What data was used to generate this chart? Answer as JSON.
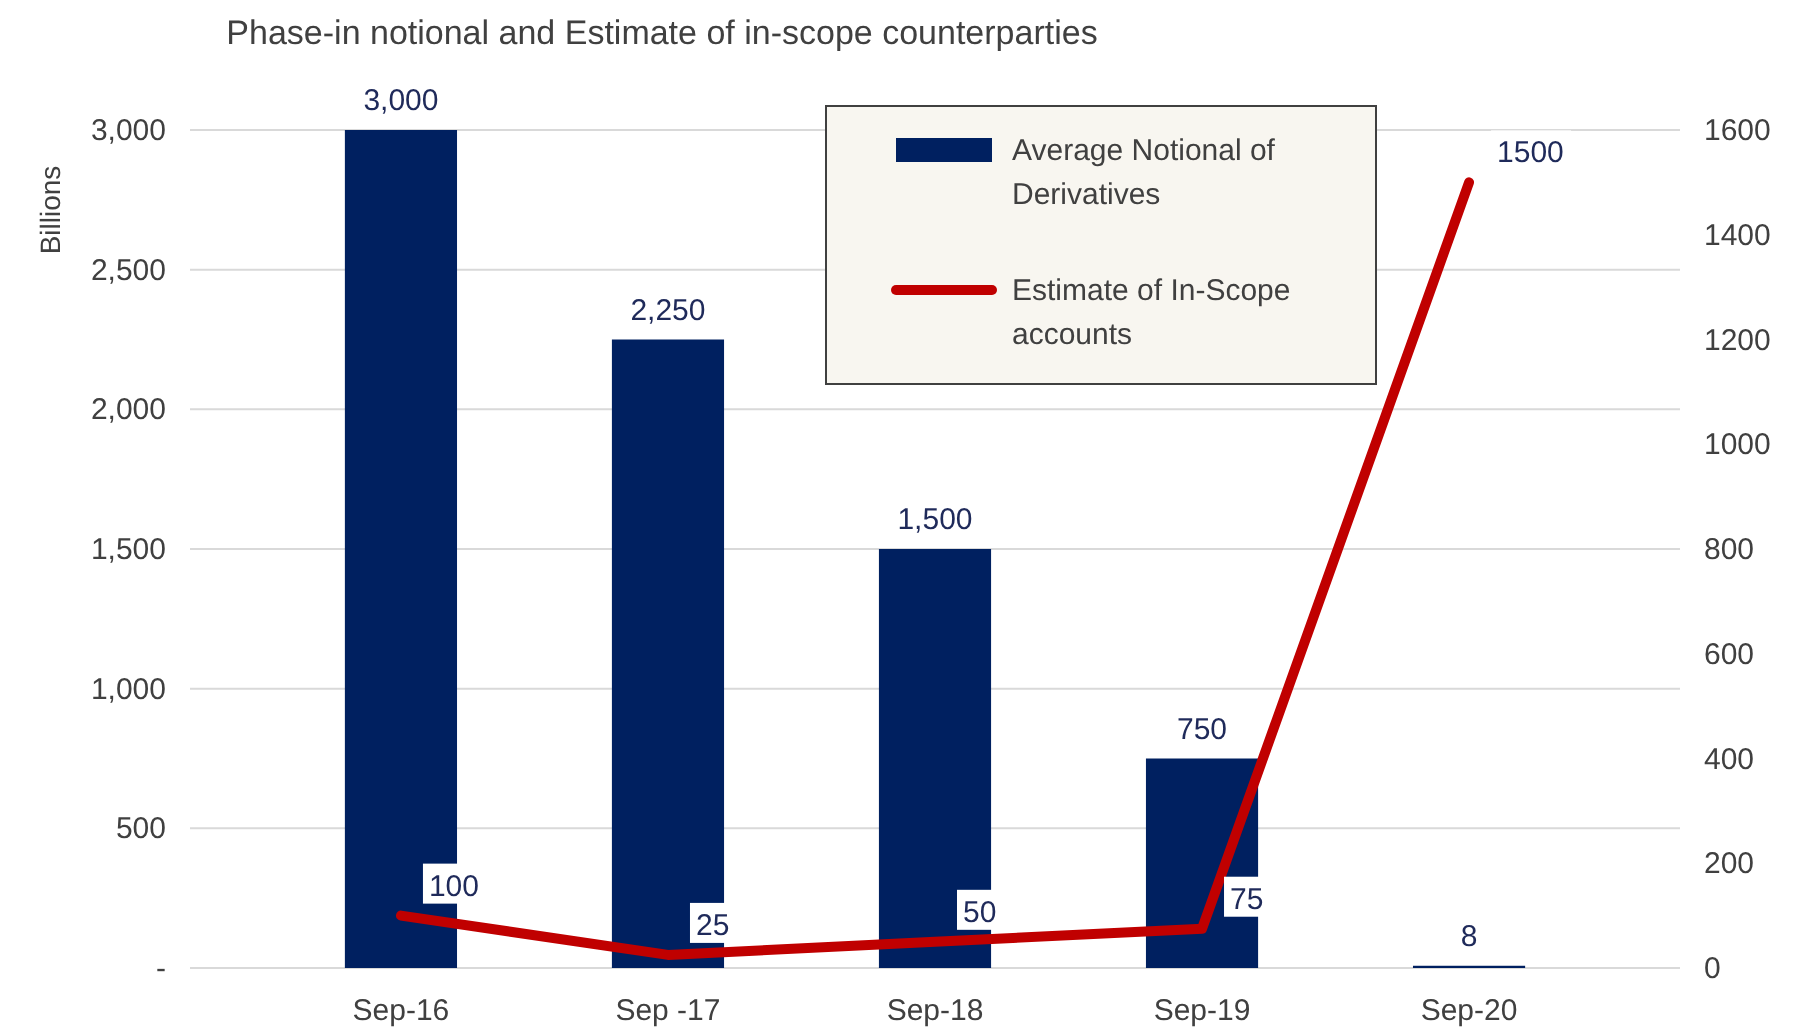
{
  "chart_data": {
    "type": "bar",
    "title": "Phase-in notional  and Estimate of in-scope counterparties",
    "ylabel": "Billions",
    "categories": [
      "Sep-16",
      "Sep -17",
      "Sep-18",
      "Sep-19",
      "Sep-20"
    ],
    "series": [
      {
        "name": "Average Notional of Derivatives",
        "color": "#002060",
        "values": [
          3000,
          2250,
          1500,
          750,
          8
        ],
        "value_labels": [
          "3,000",
          "2,250",
          "1,500",
          "750",
          "8"
        ]
      },
      {
        "name": "Estimate of In-Scope accounts",
        "type": "line",
        "axis": "y2",
        "color": "#c00000",
        "values": [
          100,
          25,
          50,
          75,
          1500
        ],
        "value_labels": [
          "100",
          "25",
          "50",
          "75",
          "1500"
        ]
      }
    ],
    "ylim": [
      0,
      3000
    ],
    "yticks": [
      {
        "value": 0,
        "label": "-"
      },
      {
        "value": 500,
        "label": "500"
      },
      {
        "value": 1000,
        "label": "1,000"
      },
      {
        "value": 1500,
        "label": "1,500"
      },
      {
        "value": 2000,
        "label": "2,000"
      },
      {
        "value": 2500,
        "label": "2,500"
      },
      {
        "value": 3000,
        "label": "3,000"
      }
    ],
    "y2lim": [
      0,
      1600
    ],
    "y2ticks": [
      0,
      200,
      400,
      600,
      800,
      1000,
      1200,
      1400,
      1600
    ],
    "grid": "y",
    "legend": "top right",
    "marker": "none",
    "line_style": "solid"
  }
}
